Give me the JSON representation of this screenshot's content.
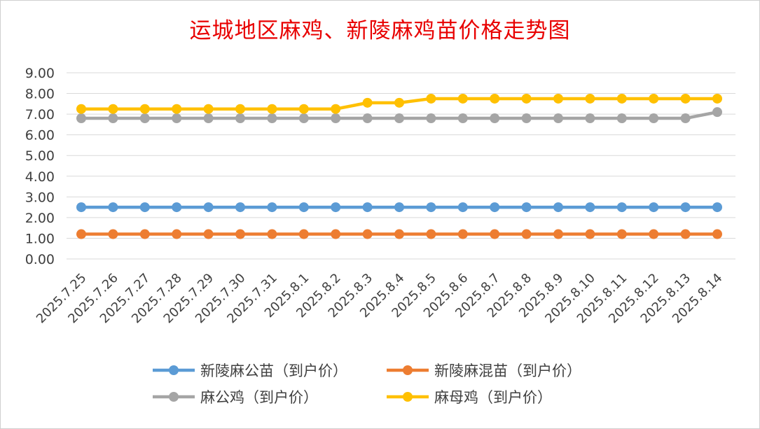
{
  "chart_data": {
    "type": "line",
    "title": "运城地区麻鸡、新陵麻鸡苗价格走势图",
    "xlabel": "",
    "ylabel": "",
    "ylim": [
      0,
      9
    ],
    "yticks": [
      "0.00",
      "1.00",
      "2.00",
      "3.00",
      "4.00",
      "5.00",
      "6.00",
      "7.00",
      "8.00",
      "9.00"
    ],
    "grid": true,
    "legend_position": "bottom",
    "categories": [
      "2025.7.25",
      "2025.7.26",
      "2025.7.27",
      "2025.7.28",
      "2025.7.29",
      "2025.7.30",
      "2025.7.31",
      "2025.8.1",
      "2025.8.2",
      "2025.8.3",
      "2025.8.4",
      "2025.8.5",
      "2025.8.6",
      "2025.8.7",
      "2025.8.8",
      "2025.8.9",
      "2025.8.10",
      "2025.8.11",
      "2025.8.12",
      "2025.8.13",
      "2025.8.14"
    ],
    "series": [
      {
        "name": "新陵麻公苗（到户价）",
        "color": "#5b9bd5",
        "values": [
          2.5,
          2.5,
          2.5,
          2.5,
          2.5,
          2.5,
          2.5,
          2.5,
          2.5,
          2.5,
          2.5,
          2.5,
          2.5,
          2.5,
          2.5,
          2.5,
          2.5,
          2.5,
          2.5,
          2.5,
          2.5
        ]
      },
      {
        "name": "新陵麻混苗（到户价）",
        "color": "#ed7d31",
        "values": [
          1.2,
          1.2,
          1.2,
          1.2,
          1.2,
          1.2,
          1.2,
          1.2,
          1.2,
          1.2,
          1.2,
          1.2,
          1.2,
          1.2,
          1.2,
          1.2,
          1.2,
          1.2,
          1.2,
          1.2,
          1.2
        ]
      },
      {
        "name": "麻公鸡（到户价）",
        "color": "#a5a5a5",
        "values": [
          6.8,
          6.8,
          6.8,
          6.8,
          6.8,
          6.8,
          6.8,
          6.8,
          6.8,
          6.8,
          6.8,
          6.8,
          6.8,
          6.8,
          6.8,
          6.8,
          6.8,
          6.8,
          6.8,
          6.8,
          7.1
        ]
      },
      {
        "name": "麻母鸡（到户价）",
        "color": "#ffc000",
        "values": [
          7.25,
          7.25,
          7.25,
          7.25,
          7.25,
          7.25,
          7.25,
          7.25,
          7.25,
          7.55,
          7.55,
          7.75,
          7.75,
          7.75,
          7.75,
          7.75,
          7.75,
          7.75,
          7.75,
          7.75,
          7.75
        ]
      }
    ]
  },
  "colors": {
    "title": "#e80000",
    "grid": "#d9d9d9",
    "text": "#404040"
  }
}
